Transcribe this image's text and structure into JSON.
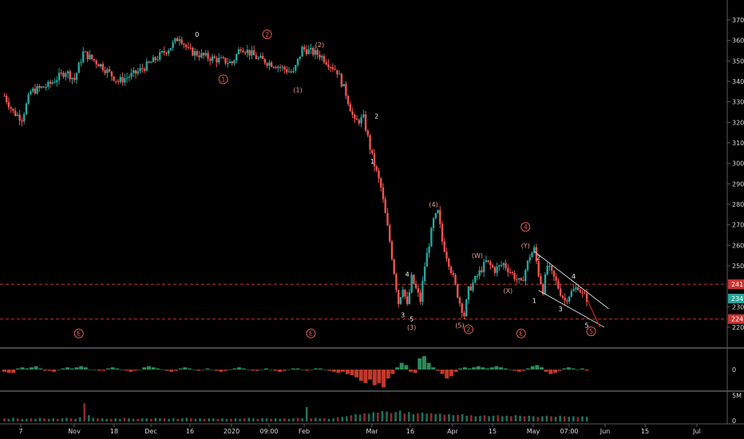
{
  "chart_data": {
    "type": "candlestick",
    "price_axis": {
      "ticks": [
        220,
        230,
        240,
        250,
        260,
        270,
        280,
        290,
        300,
        310,
        320,
        330,
        340,
        350,
        360,
        370
      ],
      "range": [
        214,
        377
      ]
    },
    "time_axis": {
      "ticks": [
        "7",
        "Nov",
        "18",
        "Dec",
        "16",
        "2020",
        "09:00",
        "Feb",
        "Mar",
        "16",
        "Apr",
        "15",
        "May",
        "07:00",
        "Jun",
        "15",
        "Jul"
      ]
    },
    "price_path": [
      {
        "t": 0,
        "p": 333
      },
      {
        "t": 2,
        "p": 325
      },
      {
        "t": 4,
        "p": 322
      },
      {
        "t": 6,
        "p": 335
      },
      {
        "t": 10,
        "p": 338
      },
      {
        "t": 14,
        "p": 345
      },
      {
        "t": 16,
        "p": 341
      },
      {
        "t": 18,
        "p": 354
      },
      {
        "t": 22,
        "p": 348
      },
      {
        "t": 26,
        "p": 340
      },
      {
        "t": 30,
        "p": 344
      },
      {
        "t": 34,
        "p": 350
      },
      {
        "t": 38,
        "p": 357
      },
      {
        "t": 40,
        "p": 362
      },
      {
        "t": 42,
        "p": 355
      },
      {
        "t": 46,
        "p": 352
      },
      {
        "t": 52,
        "p": 349
      },
      {
        "t": 54,
        "p": 357
      },
      {
        "t": 58,
        "p": 351
      },
      {
        "t": 62,
        "p": 348
      },
      {
        "t": 66,
        "p": 344
      },
      {
        "t": 68,
        "p": 356
      },
      {
        "t": 72,
        "p": 353
      },
      {
        "t": 76,
        "p": 345
      },
      {
        "t": 78,
        "p": 334
      },
      {
        "t": 80,
        "p": 320
      },
      {
        "t": 82,
        "p": 322
      },
      {
        "t": 84,
        "p": 303
      },
      {
        "t": 86,
        "p": 288
      },
      {
        "t": 88,
        "p": 262
      },
      {
        "t": 89,
        "p": 247
      },
      {
        "t": 90,
        "p": 232
      },
      {
        "t": 91,
        "p": 240
      },
      {
        "t": 92,
        "p": 230
      },
      {
        "t": 93,
        "p": 244
      },
      {
        "t": 95,
        "p": 233
      },
      {
        "t": 96,
        "p": 250
      },
      {
        "t": 98,
        "p": 272
      },
      {
        "t": 99,
        "p": 276
      },
      {
        "t": 100,
        "p": 262
      },
      {
        "t": 102,
        "p": 248
      },
      {
        "t": 104,
        "p": 232
      },
      {
        "t": 105,
        "p": 226
      },
      {
        "t": 106,
        "p": 238
      },
      {
        "t": 108,
        "p": 245
      },
      {
        "t": 110,
        "p": 252
      },
      {
        "t": 112,
        "p": 248
      },
      {
        "t": 114,
        "p": 251
      },
      {
        "t": 116,
        "p": 246
      },
      {
        "t": 118,
        "p": 241
      },
      {
        "t": 120,
        "p": 255
      },
      {
        "t": 121,
        "p": 258
      },
      {
        "t": 122,
        "p": 246
      },
      {
        "t": 123,
        "p": 238
      },
      {
        "t": 124,
        "p": 250
      },
      {
        "t": 126,
        "p": 242
      },
      {
        "t": 127,
        "p": 237
      },
      {
        "t": 128,
        "p": 233
      },
      {
        "t": 129,
        "p": 236
      },
      {
        "t": 131,
        "p": 240
      },
      {
        "t": 132,
        "p": 236
      },
      {
        "t": 133,
        "p": 234
      }
    ],
    "current_price_label": "234",
    "horizontal_levels": [
      {
        "label": "241",
        "value": 241,
        "color": "#cc3333"
      },
      {
        "label": "224",
        "value": 224,
        "color": "#cc3333"
      }
    ],
    "channel_lines": [
      {
        "from": {
          "t": 121,
          "p": 257
        },
        "to": {
          "t": 138,
          "p": 229
        }
      },
      {
        "from": {
          "t": 122,
          "p": 238
        },
        "to": {
          "t": 137,
          "p": 220
        }
      }
    ],
    "projection_line": {
      "from": {
        "t": 133,
        "p": 234
      },
      "to": {
        "t": 136,
        "p": 220
      },
      "color": "#cc2222"
    },
    "wave_labels": [
      {
        "text": "0",
        "circled": false,
        "t": 44,
        "p": 363
      },
      {
        "text": "2",
        "circled": true,
        "t": 60,
        "p": 363
      },
      {
        "text": "1",
        "circled": true,
        "t": 50,
        "p": 341
      },
      {
        "text": "(2)",
        "circled": false,
        "t": 72,
        "p": 358
      },
      {
        "text": "(1)",
        "circled": false,
        "t": 67,
        "p": 336
      },
      {
        "text": "2",
        "circled": false,
        "t": 85,
        "p": 323
      },
      {
        "text": "1",
        "circled": false,
        "t": 84,
        "p": 301
      },
      {
        "text": "(4)",
        "circled": false,
        "t": 98,
        "p": 280
      },
      {
        "text": "4",
        "circled": false,
        "t": 92,
        "p": 246
      },
      {
        "text": "3",
        "circled": false,
        "t": 91,
        "p": 226
      },
      {
        "text": "5",
        "circled": false,
        "t": 93,
        "p": 224
      },
      {
        "text": "(3)",
        "circled": false,
        "t": 93,
        "p": 220
      },
      {
        "text": "(5)",
        "circled": false,
        "t": 104,
        "p": 221
      },
      {
        "text": "2",
        "circled": true,
        "t": 106,
        "p": 219
      },
      {
        "text": "(W)",
        "circled": false,
        "t": 108,
        "p": 255
      },
      {
        "text": "(X)",
        "circled": false,
        "t": 115,
        "p": 238
      },
      {
        "text": "4",
        "circled": true,
        "t": 119,
        "p": 269
      },
      {
        "text": "(Y)",
        "circled": false,
        "t": 119,
        "p": 260
      },
      {
        "text": "2",
        "circled": false,
        "t": 122,
        "p": 254
      },
      {
        "text": "1",
        "circled": false,
        "t": 121,
        "p": 233
      },
      {
        "text": "3",
        "circled": false,
        "t": 127,
        "p": 229
      },
      {
        "text": "4",
        "circled": false,
        "t": 130,
        "p": 245
      },
      {
        "text": "5",
        "circled": false,
        "t": 133,
        "p": 221
      },
      {
        "text": "5",
        "circled": true,
        "t": 134,
        "p": 218
      },
      {
        "text": "E",
        "circled": true,
        "t": 17,
        "p": 217
      },
      {
        "text": "E",
        "circled": true,
        "t": 70,
        "p": 217
      },
      {
        "text": "E",
        "circled": true,
        "t": 118,
        "p": 217
      }
    ],
    "oscillator": {
      "axis_label": "0",
      "values": [
        -2,
        -3,
        -3,
        1,
        2,
        1,
        2,
        3,
        1,
        -1,
        -1,
        -2,
        0,
        1,
        2,
        1,
        2,
        3,
        2,
        0,
        0,
        -1,
        -1,
        1,
        2,
        1,
        0,
        -1,
        -2,
        -1,
        0,
        2,
        3,
        2,
        1,
        0,
        -1,
        -2,
        -1,
        1,
        2,
        1,
        0,
        -1,
        0,
        1,
        0,
        -1,
        -2,
        -1,
        0,
        1,
        2,
        1,
        0,
        -1,
        -1,
        0,
        1,
        0,
        -1,
        -2,
        -1,
        0,
        1,
        1,
        0,
        -1,
        0,
        1,
        1,
        0,
        -1,
        -2,
        -3,
        -2,
        -4,
        -5,
        -7,
        -10,
        -12,
        -9,
        -14,
        -12,
        -16,
        -8,
        -4,
        2,
        6,
        4,
        -2,
        -3,
        10,
        12,
        6,
        2,
        -1,
        -4,
        -8,
        -6,
        -2,
        1,
        2,
        1,
        2,
        3,
        2,
        1,
        2,
        3,
        2,
        1,
        0,
        -1,
        -2,
        -1,
        1,
        3,
        4,
        2,
        -2,
        -4,
        -3,
        -1,
        1,
        2,
        1,
        0,
        1,
        -1
      ],
      "color_up": "#2e8b57",
      "color_down": "#c0392b"
    },
    "volume": {
      "axis_label_high": "5M",
      "axis_label_zero": "0",
      "values": [
        0.6,
        0.5,
        0.7,
        0.6,
        0.5,
        0.5,
        0.6,
        0.5,
        0.7,
        0.6,
        0.5,
        0.6,
        0.5,
        0.6,
        0.7,
        0.6,
        0.5,
        0.8,
        3.5,
        1.2,
        0.7,
        0.6,
        0.6,
        0.5,
        0.5,
        0.6,
        0.5,
        0.7,
        0.6,
        0.5,
        0.5,
        0.6,
        0.6,
        0.5,
        0.7,
        0.6,
        0.6,
        0.5,
        0.6,
        0.5,
        0.6,
        0.7,
        0.6,
        0.5,
        0.6,
        0.5,
        0.6,
        0.6,
        0.5,
        0.6,
        0.5,
        0.5,
        0.6,
        0.5,
        0.6,
        0.7,
        0.6,
        0.5,
        0.6,
        0.6,
        0.5,
        0.6,
        0.5,
        0.6,
        0.5,
        0.6,
        0.7,
        0.6,
        2.8,
        0.6,
        0.7,
        0.6,
        0.6,
        0.5,
        0.6,
        0.8,
        0.9,
        1.0,
        1.2,
        1.4,
        1.3,
        1.6,
        1.5,
        1.8,
        1.7,
        2.0,
        1.9,
        1.6,
        1.8,
        2.1,
        1.5,
        1.8,
        1.4,
        1.6,
        1.7,
        1.5,
        1.6,
        1.4,
        1.5,
        1.3,
        1.4,
        1.2,
        1.3,
        1.4,
        1.1,
        1.2,
        1.0,
        1.1,
        1.2,
        1.0,
        1.1,
        1.2,
        1.0,
        1.1,
        1.0,
        1.2,
        1.1,
        1.0,
        1.1,
        1.0,
        0.9,
        1.0,
        1.1,
        1.0,
        0.9,
        1.1,
        1.0,
        0.9,
        1.0,
        0.9,
        1.0,
        0.9
      ],
      "color_up": "#1f6f5c",
      "color_down": "#8e2b2b"
    }
  }
}
